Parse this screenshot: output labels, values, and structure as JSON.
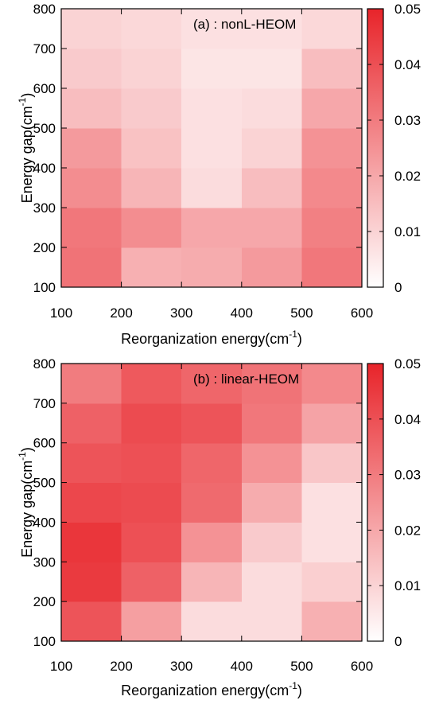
{
  "chart_data": [
    {
      "type": "heatmap",
      "title": "(a) : nonL-HEOM",
      "xlabel": "Reorganization energy(cm",
      "xlabel_sup": "-1",
      "xlabel_end": ")",
      "ylabel": "Energy gap(cm",
      "ylabel_sup": "-1",
      "ylabel_end": ")",
      "x_ticks": [
        100,
        200,
        300,
        400,
        500,
        600
      ],
      "y_ticks": [
        100,
        200,
        300,
        400,
        500,
        600,
        700,
        800
      ],
      "xlim": [
        100,
        600
      ],
      "ylim": [
        100,
        800
      ],
      "x_bins": [
        [
          100,
          200
        ],
        [
          200,
          300
        ],
        [
          300,
          400
        ],
        [
          400,
          500
        ],
        [
          500,
          600
        ]
      ],
      "y_bins": [
        [
          100,
          200
        ],
        [
          200,
          300
        ],
        [
          300,
          400
        ],
        [
          400,
          500
        ],
        [
          500,
          600
        ],
        [
          600,
          700
        ],
        [
          700,
          800
        ]
      ],
      "values_row_order": "bottom-to-top",
      "values": [
        [
          0.032,
          0.018,
          0.019,
          0.023,
          0.031
        ],
        [
          0.031,
          0.026,
          0.02,
          0.02,
          0.029
        ],
        [
          0.026,
          0.017,
          0.008,
          0.015,
          0.027
        ],
        [
          0.023,
          0.014,
          0.007,
          0.01,
          0.025
        ],
        [
          0.015,
          0.012,
          0.007,
          0.008,
          0.02
        ],
        [
          0.012,
          0.01,
          0.006,
          0.006,
          0.015
        ],
        [
          0.01,
          0.009,
          0.007,
          0.007,
          0.009
        ]
      ],
      "colorbar": {
        "range": [
          0,
          0.05
        ],
        "ticks": [
          "0",
          "0.01",
          "0.02",
          "0.03",
          "0.04",
          "0.05"
        ],
        "color_low": "#ffffff",
        "color_high": "#e8242a"
      },
      "grid": false
    },
    {
      "type": "heatmap",
      "title": "(b) : linear-HEOM",
      "xlabel": "Reorganization energy(cm",
      "xlabel_sup": "-1",
      "xlabel_end": ")",
      "ylabel": "Energy gap(cm",
      "ylabel_sup": "-1",
      "ylabel_end": ")",
      "x_ticks": [
        100,
        200,
        300,
        400,
        500,
        600
      ],
      "y_ticks": [
        100,
        200,
        300,
        400,
        500,
        600,
        700,
        800
      ],
      "xlim": [
        100,
        600
      ],
      "ylim": [
        100,
        800
      ],
      "x_bins": [
        [
          100,
          200
        ],
        [
          200,
          300
        ],
        [
          300,
          400
        ],
        [
          400,
          500
        ],
        [
          500,
          600
        ]
      ],
      "y_bins": [
        [
          100,
          200
        ],
        [
          200,
          300
        ],
        [
          300,
          400
        ],
        [
          400,
          500
        ],
        [
          500,
          600
        ],
        [
          600,
          700
        ],
        [
          700,
          800
        ]
      ],
      "values_row_order": "bottom-to-top",
      "values": [
        [
          0.039,
          0.022,
          0.008,
          0.008,
          0.018
        ],
        [
          0.045,
          0.036,
          0.017,
          0.008,
          0.011
        ],
        [
          0.046,
          0.04,
          0.025,
          0.012,
          0.007
        ],
        [
          0.042,
          0.041,
          0.034,
          0.019,
          0.007
        ],
        [
          0.039,
          0.04,
          0.035,
          0.025,
          0.013
        ],
        [
          0.036,
          0.041,
          0.039,
          0.031,
          0.021
        ],
        [
          0.03,
          0.038,
          0.035,
          0.032,
          0.027
        ]
      ],
      "colorbar": {
        "range": [
          0,
          0.05
        ],
        "ticks": [
          "0",
          "0.01",
          "0.02",
          "0.03",
          "0.04",
          "0.05"
        ],
        "color_low": "#ffffff",
        "color_high": "#e8242a"
      },
      "grid": false
    }
  ]
}
